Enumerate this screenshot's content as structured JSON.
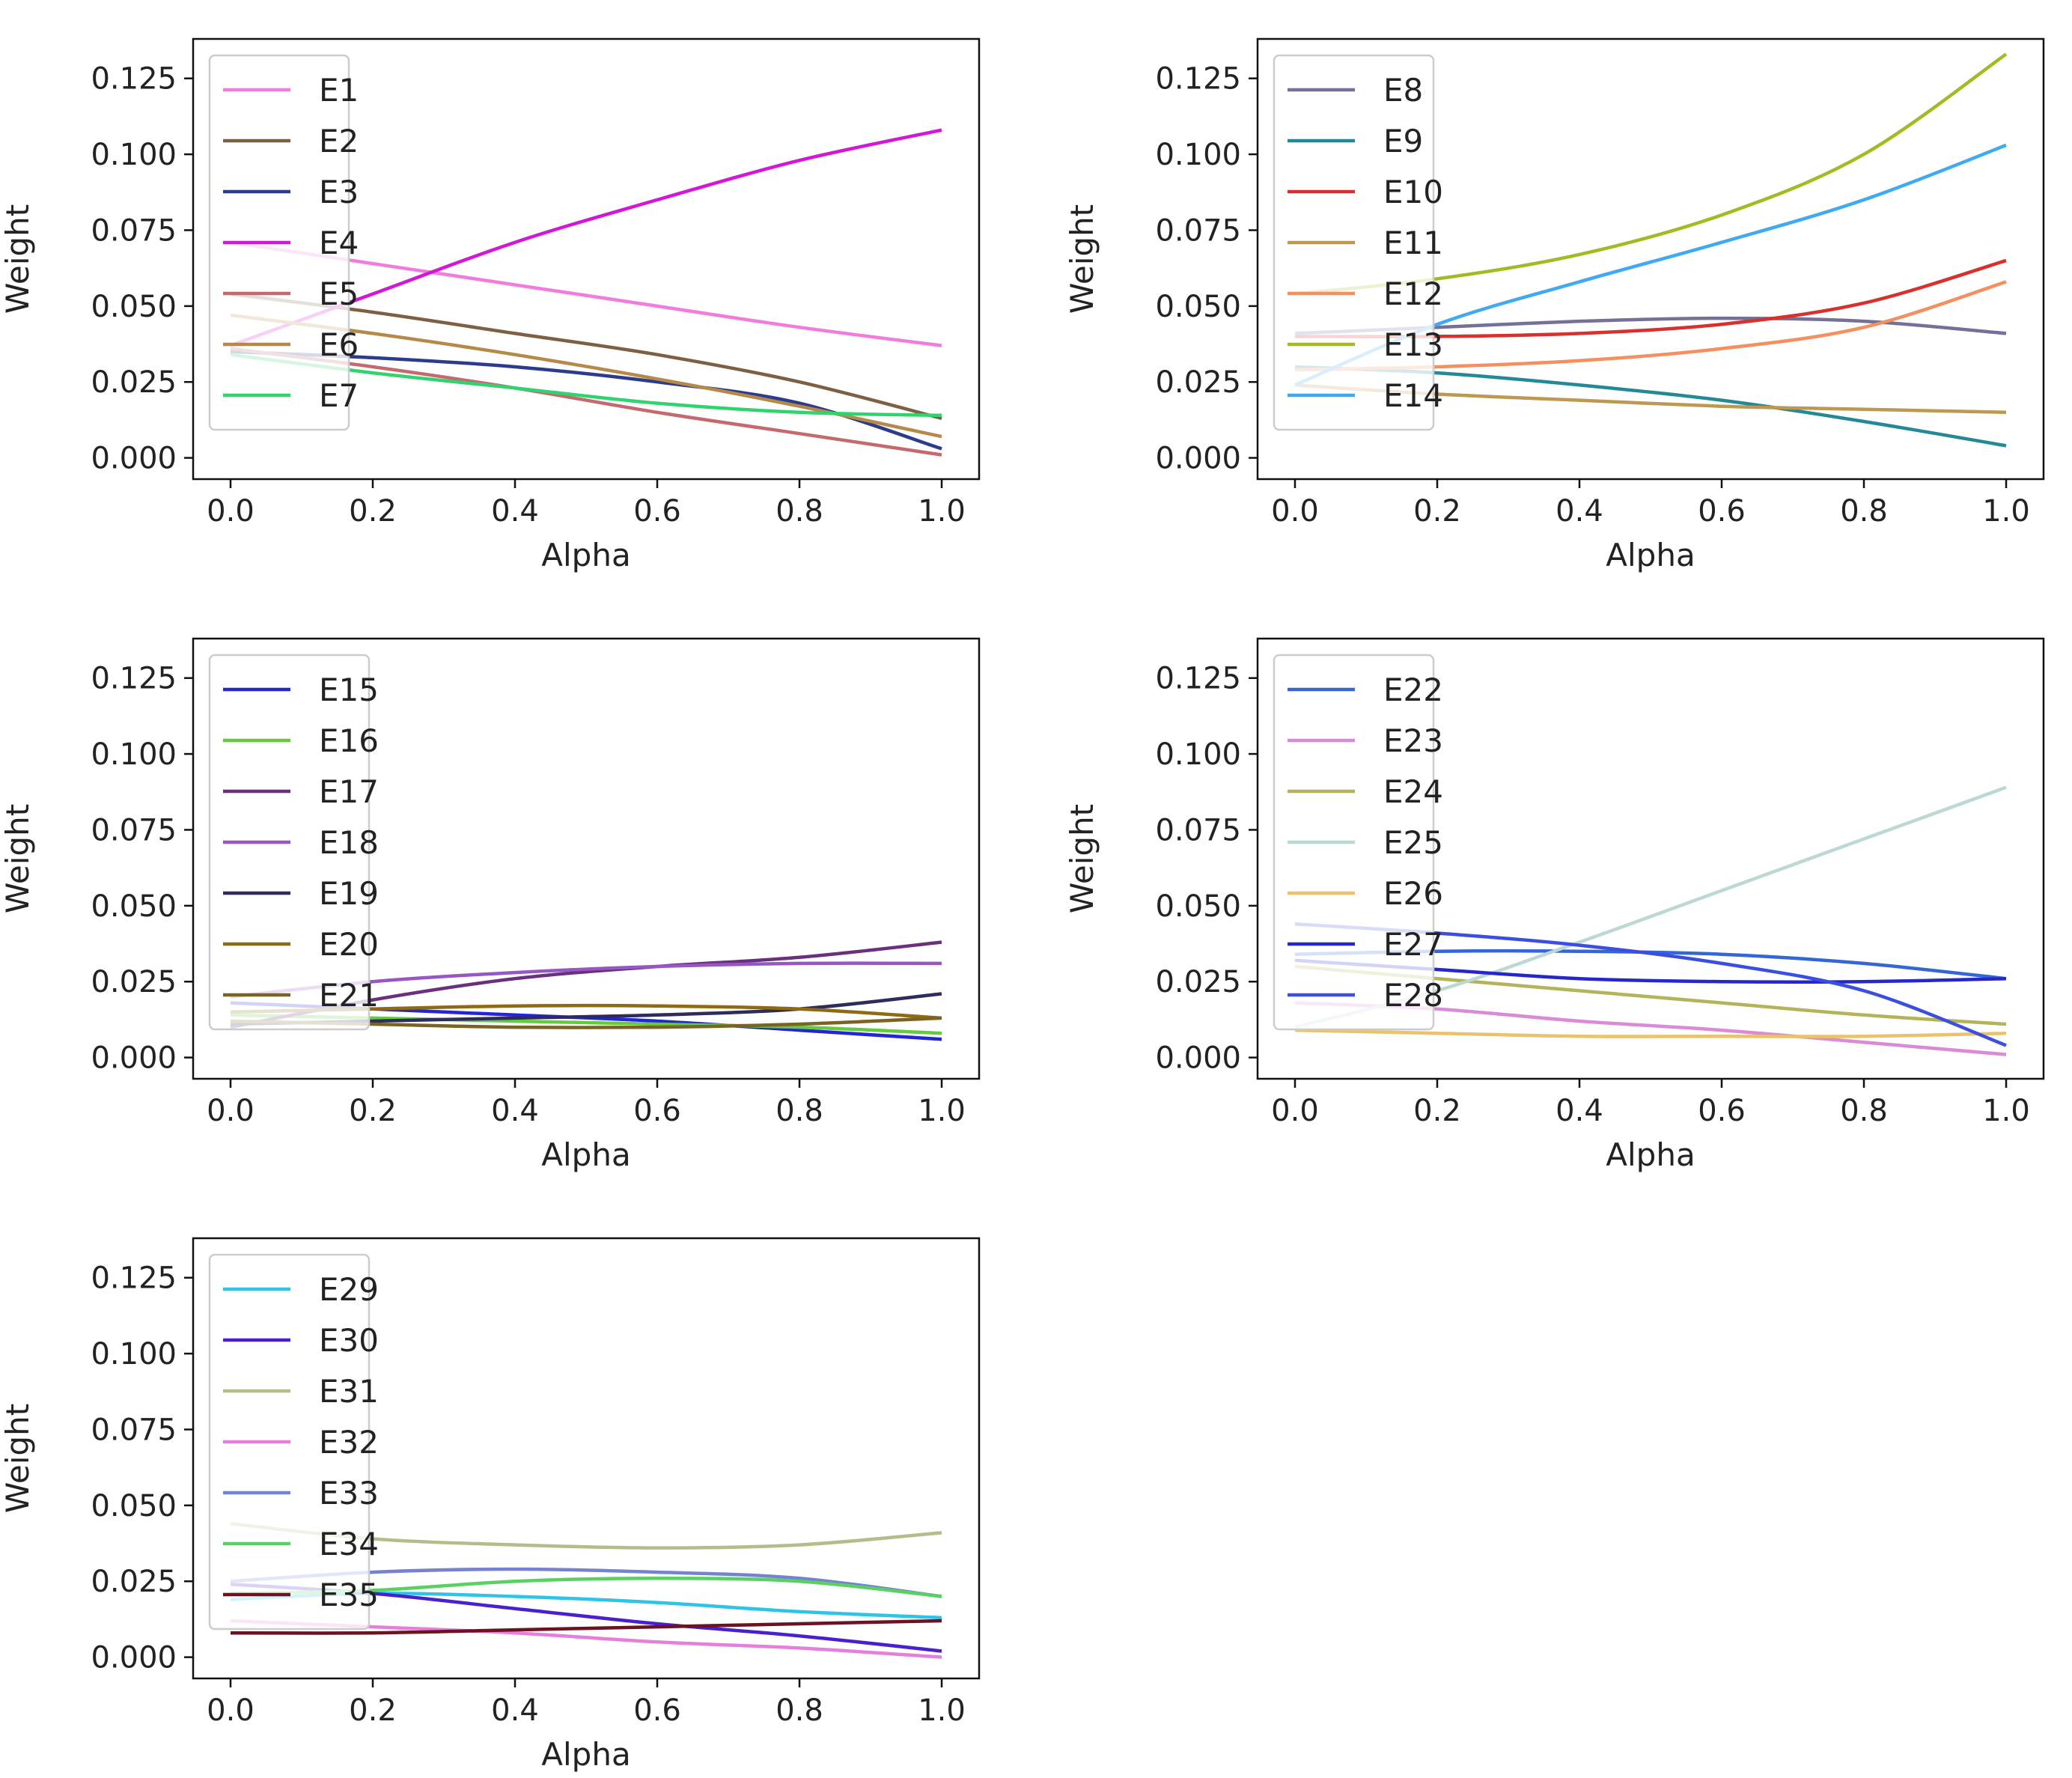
{
  "chart_data": [
    {
      "type": "line",
      "xlabel": "Alpha",
      "ylabel": "Weight",
      "xlim": [
        0.0,
        1.0
      ],
      "ylim": [
        -0.007,
        0.138
      ],
      "xticks": [
        "0.0",
        "0.2",
        "0.4",
        "0.6",
        "0.8",
        "1.0"
      ],
      "yticks": [
        "0.000",
        "0.025",
        "0.050",
        "0.075",
        "0.100",
        "0.125"
      ],
      "legend_position": "upper-left",
      "x": [
        0.0,
        0.2,
        0.4,
        0.6,
        0.8,
        1.0
      ],
      "series": [
        {
          "name": "E1",
          "color": "#f07cdc",
          "values": [
            0.071,
            0.064,
            0.057,
            0.05,
            0.043,
            0.037
          ]
        },
        {
          "name": "E2",
          "color": "#7d5f44",
          "values": [
            0.054,
            0.048,
            0.041,
            0.034,
            0.025,
            0.013
          ]
        },
        {
          "name": "E3",
          "color": "#2b3c8c",
          "values": [
            0.035,
            0.033,
            0.03,
            0.025,
            0.018,
            0.003
          ]
        },
        {
          "name": "E4",
          "color": "#d316d8",
          "values": [
            0.037,
            0.054,
            0.071,
            0.085,
            0.098,
            0.108
          ]
        },
        {
          "name": "E5",
          "color": "#c4696e",
          "values": [
            0.036,
            0.03,
            0.023,
            0.015,
            0.008,
            0.001
          ]
        },
        {
          "name": "E6",
          "color": "#b58a49",
          "values": [
            0.047,
            0.041,
            0.034,
            0.026,
            0.017,
            0.007
          ]
        },
        {
          "name": "E7",
          "color": "#30d46f",
          "values": [
            0.034,
            0.028,
            0.023,
            0.018,
            0.015,
            0.014
          ]
        }
      ]
    },
    {
      "type": "line",
      "xlabel": "Alpha",
      "ylabel": "Weight",
      "xlim": [
        0.0,
        1.0
      ],
      "ylim": [
        -0.007,
        0.138
      ],
      "xticks": [
        "0.0",
        "0.2",
        "0.4",
        "0.6",
        "0.8",
        "1.0"
      ],
      "yticks": [
        "0.000",
        "0.025",
        "0.050",
        "0.075",
        "0.100",
        "0.125"
      ],
      "legend_position": "upper-left",
      "x": [
        0.0,
        0.2,
        0.4,
        0.6,
        0.8,
        1.0
      ],
      "series": [
        {
          "name": "E8",
          "color": "#747198",
          "values": [
            0.041,
            0.043,
            0.045,
            0.046,
            0.045,
            0.041
          ]
        },
        {
          "name": "E9",
          "color": "#238a95",
          "values": [
            0.03,
            0.028,
            0.024,
            0.019,
            0.012,
            0.004
          ]
        },
        {
          "name": "E10",
          "color": "#d8302c",
          "values": [
            0.04,
            0.04,
            0.041,
            0.044,
            0.051,
            0.065
          ]
        },
        {
          "name": "E11",
          "color": "#bd9850",
          "values": [
            0.024,
            0.021,
            0.019,
            0.017,
            0.016,
            0.015
          ]
        },
        {
          "name": "E12",
          "color": "#f48f5f",
          "values": [
            0.029,
            0.03,
            0.032,
            0.036,
            0.043,
            0.058
          ]
        },
        {
          "name": "E13",
          "color": "#a2bb22",
          "values": [
            0.054,
            0.059,
            0.067,
            0.08,
            0.1,
            0.133
          ]
        },
        {
          "name": "E14",
          "color": "#3fa9f2",
          "values": [
            0.024,
            0.044,
            0.058,
            0.071,
            0.085,
            0.103
          ]
        }
      ]
    },
    {
      "type": "line",
      "xlabel": "Alpha",
      "ylabel": "Weight",
      "xlim": [
        0.0,
        1.0
      ],
      "ylim": [
        -0.007,
        0.138
      ],
      "xticks": [
        "0.0",
        "0.2",
        "0.4",
        "0.6",
        "0.8",
        "1.0"
      ],
      "yticks": [
        "0.000",
        "0.025",
        "0.050",
        "0.075",
        "0.100",
        "0.125"
      ],
      "legend_position": "upper-left",
      "x": [
        0.0,
        0.2,
        0.4,
        0.6,
        0.8,
        1.0
      ],
      "series": [
        {
          "name": "E15",
          "color": "#2424d8",
          "values": [
            0.018,
            0.016,
            0.014,
            0.012,
            0.009,
            0.006
          ]
        },
        {
          "name": "E16",
          "color": "#62cc3e",
          "values": [
            0.014,
            0.013,
            0.012,
            0.011,
            0.01,
            0.008
          ]
        },
        {
          "name": "E17",
          "color": "#6a2f7d",
          "values": [
            0.01,
            0.019,
            0.026,
            0.03,
            0.033,
            0.038
          ]
        },
        {
          "name": "E18",
          "color": "#9656c4",
          "values": [
            0.02,
            0.025,
            0.028,
            0.03,
            0.031,
            0.031
          ]
        },
        {
          "name": "E19",
          "color": "#2e2c5a",
          "values": [
            0.011,
            0.012,
            0.013,
            0.014,
            0.016,
            0.021
          ]
        },
        {
          "name": "E20",
          "color": "#8f6a12",
          "values": [
            0.015,
            0.016,
            0.017,
            0.017,
            0.016,
            0.013
          ]
        },
        {
          "name": "E21",
          "color": "#7a6423",
          "values": [
            0.012,
            0.011,
            0.01,
            0.01,
            0.011,
            0.013
          ]
        }
      ]
    },
    {
      "type": "line",
      "xlabel": "Alpha",
      "ylabel": "Weight",
      "xlim": [
        0.0,
        1.0
      ],
      "ylim": [
        -0.007,
        0.138
      ],
      "xticks": [
        "0.0",
        "0.2",
        "0.4",
        "0.6",
        "0.8",
        "1.0"
      ],
      "yticks": [
        "0.000",
        "0.025",
        "0.050",
        "0.075",
        "0.100",
        "0.125"
      ],
      "legend_position": "upper-left",
      "x": [
        0.0,
        0.2,
        0.4,
        0.6,
        0.8,
        1.0
      ],
      "series": [
        {
          "name": "E22",
          "color": "#3566d6",
          "values": [
            0.034,
            0.035,
            0.035,
            0.034,
            0.031,
            0.026
          ]
        },
        {
          "name": "E23",
          "color": "#da8ad6",
          "values": [
            0.018,
            0.016,
            0.012,
            0.009,
            0.005,
            0.001
          ]
        },
        {
          "name": "E24",
          "color": "#b3b35a",
          "values": [
            0.03,
            0.026,
            0.022,
            0.018,
            0.014,
            0.011
          ]
        },
        {
          "name": "E25",
          "color": "#bcd8d4",
          "values": [
            0.01,
            0.022,
            0.038,
            0.055,
            0.072,
            0.089
          ]
        },
        {
          "name": "E26",
          "color": "#ebc26b",
          "values": [
            0.009,
            0.008,
            0.007,
            0.007,
            0.007,
            0.008
          ]
        },
        {
          "name": "E27",
          "color": "#2626cf",
          "values": [
            0.032,
            0.029,
            0.026,
            0.025,
            0.025,
            0.026
          ]
        },
        {
          "name": "E28",
          "color": "#3a4fe0",
          "values": [
            0.044,
            0.041,
            0.037,
            0.031,
            0.022,
            0.004
          ]
        }
      ]
    },
    {
      "type": "line",
      "xlabel": "Alpha",
      "ylabel": "Weight",
      "xlim": [
        0.0,
        1.0
      ],
      "ylim": [
        -0.007,
        0.138
      ],
      "xticks": [
        "0.0",
        "0.2",
        "0.4",
        "0.6",
        "0.8",
        "1.0"
      ],
      "yticks": [
        "0.000",
        "0.025",
        "0.050",
        "0.075",
        "0.100",
        "0.125"
      ],
      "legend_position": "upper-left",
      "x": [
        0.0,
        0.2,
        0.4,
        0.6,
        0.8,
        1.0
      ],
      "series": [
        {
          "name": "E29",
          "color": "#2dc4e8",
          "values": [
            0.019,
            0.021,
            0.02,
            0.018,
            0.015,
            0.013
          ]
        },
        {
          "name": "E30",
          "color": "#4a1fcf",
          "values": [
            0.024,
            0.021,
            0.016,
            0.011,
            0.007,
            0.002
          ]
        },
        {
          "name": "E31",
          "color": "#b4bd8a",
          "values": [
            0.044,
            0.039,
            0.037,
            0.036,
            0.037,
            0.041
          ]
        },
        {
          "name": "E32",
          "color": "#e67edb",
          "values": [
            0.012,
            0.01,
            0.008,
            0.005,
            0.003,
            0.0
          ]
        },
        {
          "name": "E33",
          "color": "#7582cf",
          "values": [
            0.025,
            0.028,
            0.029,
            0.028,
            0.026,
            0.02
          ]
        },
        {
          "name": "E34",
          "color": "#58d162",
          "values": [
            0.021,
            0.022,
            0.025,
            0.026,
            0.025,
            0.02
          ]
        },
        {
          "name": "E35",
          "color": "#6b1320",
          "values": [
            0.008,
            0.008,
            0.009,
            0.01,
            0.011,
            0.012
          ]
        }
      ]
    }
  ]
}
